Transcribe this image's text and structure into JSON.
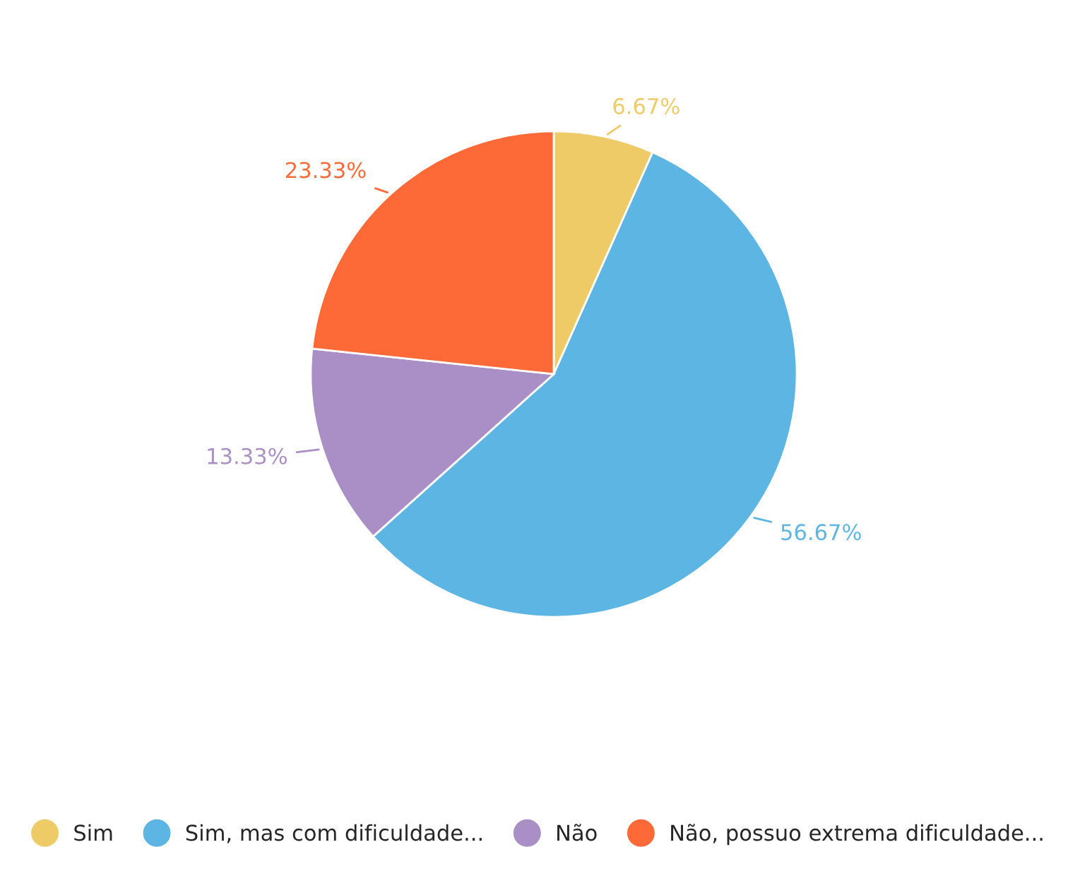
{
  "chart_data": {
    "type": "pie",
    "categories": [
      "Sim",
      "Sim, mas com dificuldade...",
      "Não",
      "Não, possuo extrema dificuldade..."
    ],
    "values": [
      6.67,
      56.67,
      13.33,
      23.33
    ],
    "colors": [
      "#efcb68",
      "#5db5e4",
      "#a98fc6",
      "#fd6a38"
    ],
    "value_labels": [
      "6.67%",
      "56.67%",
      "13.33%",
      "23.33%"
    ],
    "legend": "bottom"
  }
}
